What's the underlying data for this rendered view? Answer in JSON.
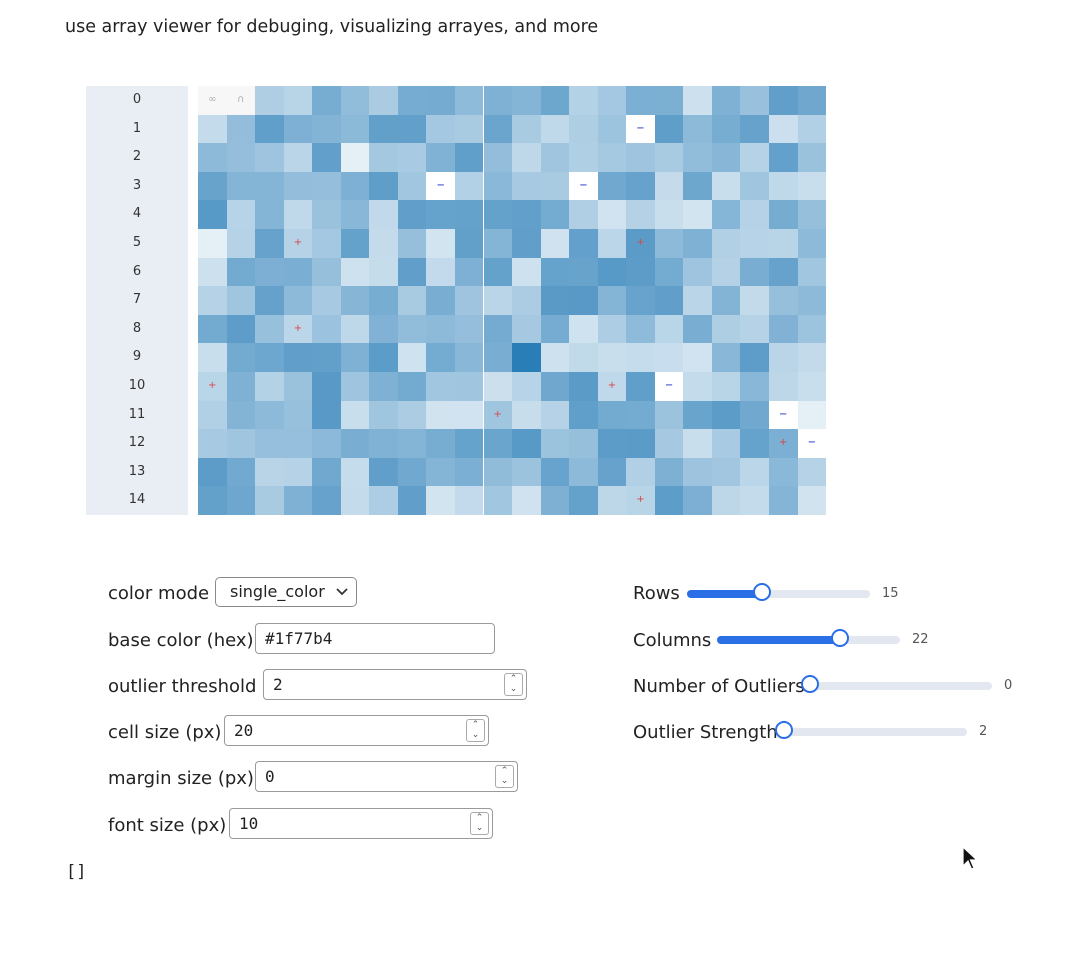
{
  "intro_text": "use array viewer for debuging, visualizing arrayes, and more",
  "array_view": {
    "row_labels": [
      "0",
      "1",
      "2",
      "3",
      "4",
      "5",
      "6",
      "7",
      "8",
      "9",
      "10",
      "11",
      "12",
      "13",
      "14"
    ],
    "header_symbols": [
      "∞",
      "∩"
    ],
    "base_color": "#1f77b4"
  },
  "controls": {
    "color_mode": {
      "label": "color mode",
      "value": "single_color"
    },
    "base_color": {
      "label": "base color (hex)",
      "value": "#1f77b4"
    },
    "outlier_threshold": {
      "label": "outlier threshold",
      "value": "2"
    },
    "cell_size": {
      "label": "cell size (px)",
      "value": "20"
    },
    "margin_size": {
      "label": "margin size (px)",
      "value": "0"
    },
    "font_size": {
      "label": "font size (px)",
      "value": "10"
    }
  },
  "sliders": [
    {
      "label": "Rows",
      "value": "15",
      "fraction": 0.41
    },
    {
      "label": "Columns",
      "value": "22",
      "fraction": 0.67
    },
    {
      "label": "Number of Outliers",
      "value": "0",
      "fraction": 0.0
    },
    {
      "label": "Outlier Strength",
      "value": "2",
      "fraction": 0.0
    }
  ],
  "output_text": "[]",
  "icons": {
    "select_chevron": "chevron-down-icon",
    "spin_buttons": "stepper-arrows-icon",
    "cursor": "mouse-cursor-icon"
  }
}
